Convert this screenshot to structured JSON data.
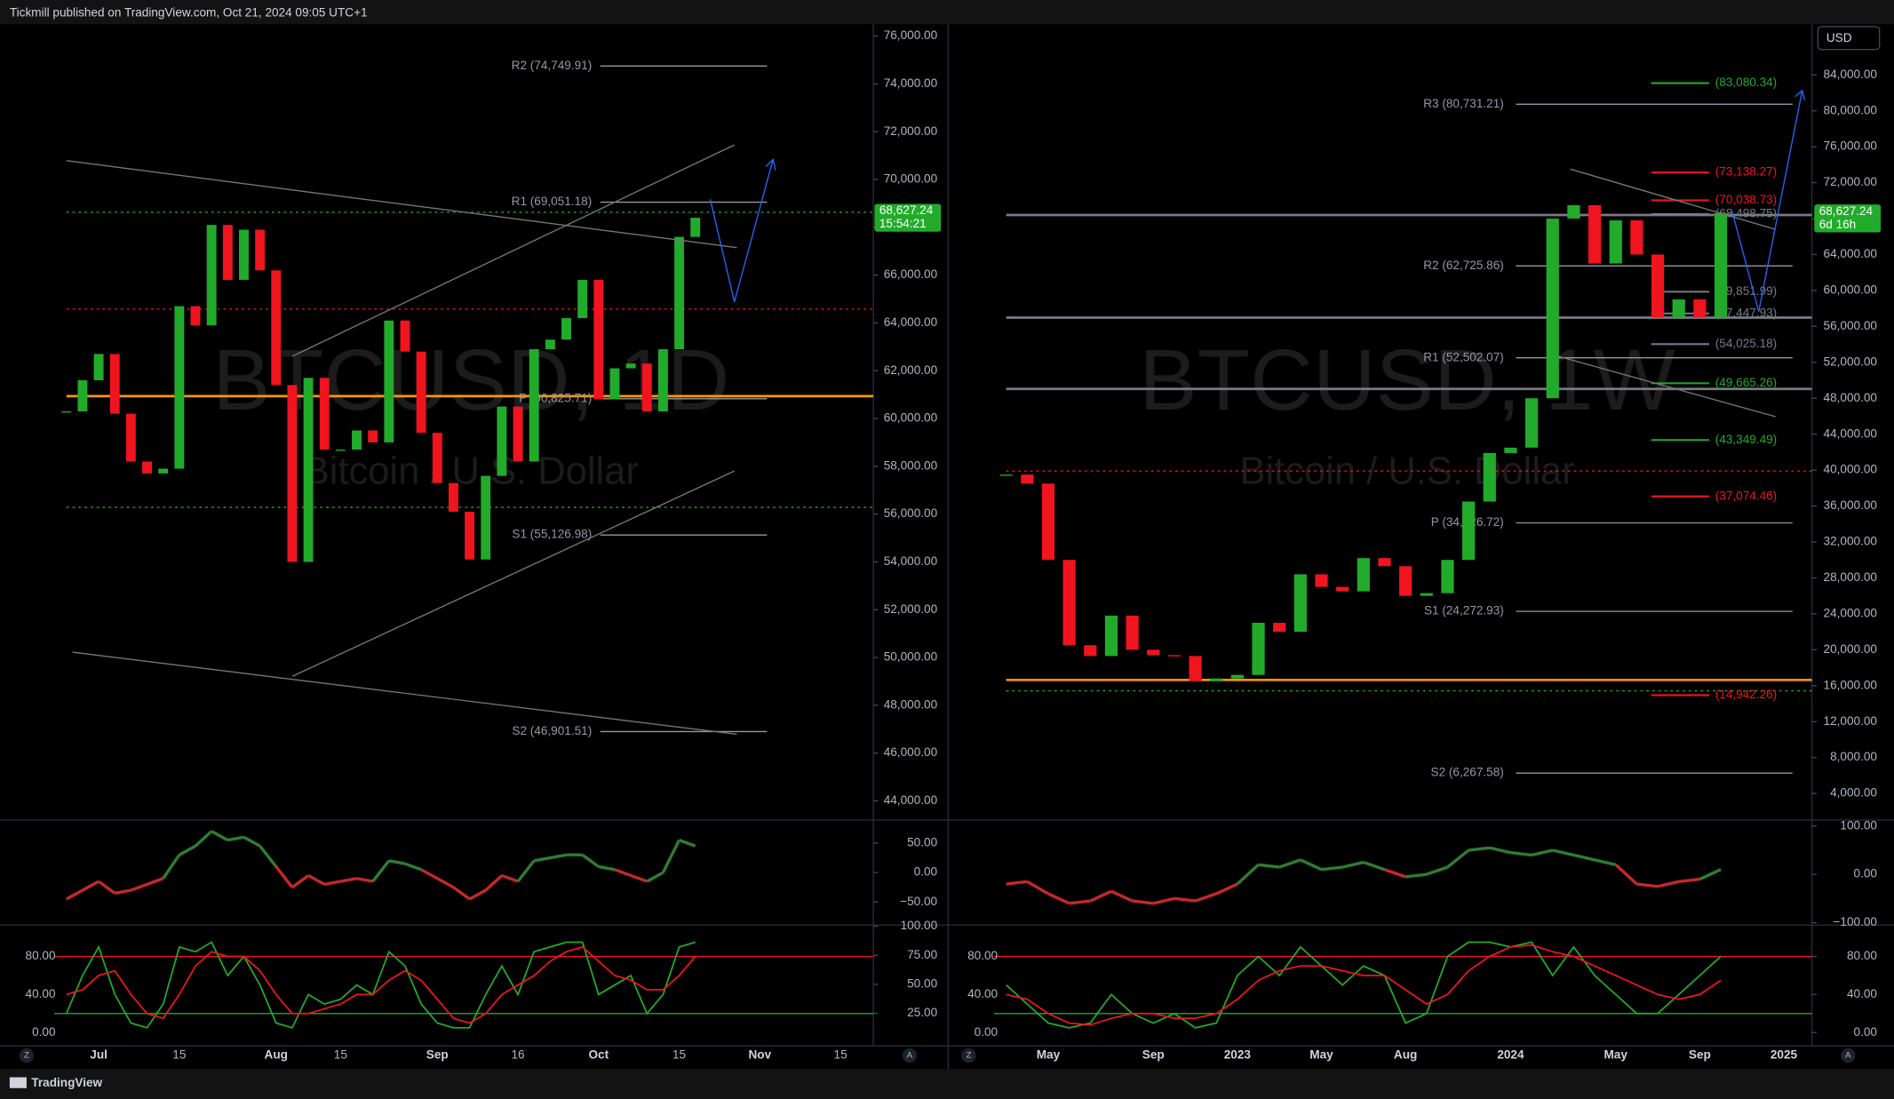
{
  "header": {
    "title": "Tickmill published on TradingView.com, Oct 21, 2024 09:05 UTC+1",
    "currency": "USD"
  },
  "footer": {
    "brand": "TradingView"
  },
  "scale_buttons": [
    "Z",
    "A"
  ],
  "chart_data": [
    {
      "type": "candlestick",
      "title": "BTCUSD, 1D",
      "subtitle": "Bitcoin / U.S. Dollar",
      "up_color": "#22ab2b",
      "down_color": "#f0141e",
      "categories": [
        null,
        null,
        "Jul",
        null,
        null,
        null,
        null,
        "15",
        null,
        null,
        null,
        null,
        null,
        "Aug",
        null,
        null,
        null,
        "15",
        null,
        null,
        null,
        null,
        null,
        "Sep",
        null,
        null,
        null,
        null,
        "16",
        null,
        null,
        null,
        null,
        "Oct",
        null,
        null,
        null,
        null,
        "15",
        null,
        null,
        null,
        null,
        "Nov",
        null,
        null,
        null,
        null,
        "15",
        null
      ],
      "values": [
        60300,
        61600,
        62700,
        60200,
        58200,
        57700,
        57900,
        64700,
        63900,
        68100,
        65800,
        67900,
        66200,
        61400,
        54000,
        61700,
        58700,
        58700,
        59500,
        59000,
        64100,
        62800,
        59400,
        57300,
        56100,
        54100,
        57600,
        60500,
        58200,
        62900,
        63300,
        64200,
        65800,
        60800,
        62100,
        62300,
        60300,
        62900,
        67600,
        68400,
        null,
        null,
        null,
        null,
        null,
        null,
        null,
        null,
        null,
        null
      ],
      "ylim": [
        43250,
        76500
      ],
      "yticks": [
        {
          "value": 44000,
          "label": "44,000.00"
        },
        {
          "value": 46000,
          "label": "46,000.00"
        },
        {
          "value": 48000,
          "label": "48,000.00"
        },
        {
          "value": 50000,
          "label": "50,000.00"
        },
        {
          "value": 52000,
          "label": "52,000.00"
        },
        {
          "value": 54000,
          "label": "54,000.00"
        },
        {
          "value": 56000,
          "label": "56,000.00"
        },
        {
          "value": 58000,
          "label": "58,000.00"
        },
        {
          "value": 60000,
          "label": "60,000.00"
        },
        {
          "value": 62000,
          "label": "62,000.00"
        },
        {
          "value": 64000,
          "label": "64,000.00"
        },
        {
          "value": 66000,
          "label": "66,000.00"
        },
        {
          "value": 68000,
          "label": "68,000.00"
        },
        {
          "value": 70000,
          "label": "70,000.00"
        },
        {
          "value": 72000,
          "label": "72,000.00"
        },
        {
          "value": 74000,
          "label": "74,000.00"
        },
        {
          "value": 76000,
          "label": "76,000.00"
        }
      ],
      "last_price": {
        "value": 68627.24,
        "label": "68,627.24",
        "timer": "15:54:21"
      },
      "hlines": [
        {
          "value": 64575,
          "color": "#f0141e",
          "dashed": true
        },
        {
          "value": 60935,
          "color": "#ff9800",
          "dashed": false
        },
        {
          "value": 56284,
          "color": "#22ab2b",
          "dashed": true
        },
        {
          "value": 68627.24,
          "color": "#22ab2b",
          "dashed": true
        }
      ],
      "pivots": [
        {
          "label": "R2 (74,749.91)",
          "value": 74749.91,
          "color": "#9598a1"
        },
        {
          "label": "R1 (69,051.18)",
          "value": 69051.18,
          "color": "#9598a1"
        },
        {
          "label": "P (60,825.71)",
          "value": 60825.71,
          "color": "#9598a1"
        },
        {
          "label": "S1 (55,126.98)",
          "value": 55126.98,
          "color": "#9598a1"
        },
        {
          "label": "S2 (46,901.51)",
          "value": 46901.51,
          "color": "#9598a1"
        }
      ],
      "marks": [],
      "momentum": {
        "type": "line",
        "pos_color": "#2e7d32",
        "neg_color": "#c62828",
        "ylim": [
          -87,
          87
        ],
        "yticks": [
          {
            "value": 50,
            "label": "50.00"
          },
          {
            "value": 0,
            "label": "0.00"
          },
          {
            "value": -50,
            "label": "−50.00"
          }
        ],
        "values": [
          -45,
          -30,
          -15,
          -35,
          -30,
          -20,
          -10,
          30,
          45,
          70,
          55,
          60,
          45,
          10,
          -25,
          -5,
          -20,
          -15,
          -10,
          -15,
          20,
          15,
          5,
          -10,
          -25,
          -45,
          -30,
          -5,
          -15,
          20,
          25,
          30,
          30,
          10,
          5,
          -5,
          -15,
          0,
          55,
          45,
          null,
          null,
          null,
          null,
          null,
          null,
          null,
          null,
          null,
          null
        ]
      },
      "stoch": {
        "type": "line",
        "ylim": [
          -12.7,
          111.7
        ],
        "yticks": [
          {
            "value": 80,
            "label": "80.00"
          },
          {
            "value": 40,
            "label": "40.00"
          },
          {
            "value": 0,
            "label": "0.00"
          }
        ],
        "y2lim": [
          -2,
          100
        ],
        "y2ticks": [
          {
            "value": 100,
            "label": "100.00"
          },
          {
            "value": 75,
            "label": "75.00"
          },
          {
            "value": 50,
            "label": "50.00"
          },
          {
            "value": 25,
            "label": "25.00"
          }
        ],
        "levels": [
          {
            "value": 80,
            "color": "#f0141e"
          },
          {
            "value": 20,
            "color": "#22ab2b"
          }
        ],
        "series": [
          {
            "color": "#22ab2b",
            "values": [
              20,
              60,
              90,
              40,
              10,
              5,
              30,
              90,
              85,
              95,
              60,
              80,
              50,
              10,
              5,
              40,
              30,
              35,
              50,
              40,
              85,
              70,
              30,
              10,
              5,
              5,
              40,
              70,
              40,
              85,
              90,
              95,
              95,
              40,
              50,
              60,
              20,
              40,
              90,
              95,
              null,
              null,
              null,
              null,
              null,
              null,
              null,
              null,
              null,
              null
            ]
          },
          {
            "color": "#f0141e",
            "values": [
              40,
              45,
              60,
              65,
              40,
              20,
              15,
              40,
              70,
              85,
              80,
              80,
              65,
              40,
              20,
              20,
              25,
              30,
              40,
              40,
              55,
              65,
              55,
              35,
              15,
              10,
              20,
              40,
              50,
              60,
              75,
              85,
              90,
              75,
              60,
              55,
              45,
              45,
              60,
              80,
              null,
              null,
              null,
              null,
              null,
              null,
              null,
              null,
              null,
              null
            ]
          }
        ]
      }
    },
    {
      "type": "candlestick",
      "title": "BTCUSD, 1W",
      "subtitle": "Bitcoin / U.S. Dollar",
      "up_color": "#22ab2b",
      "down_color": "#f0141e",
      "categories": [
        null,
        null,
        "May",
        null,
        null,
        null,
        null,
        "Sep",
        null,
        null,
        null,
        "2023",
        null,
        null,
        null,
        "May",
        null,
        null,
        null,
        "Aug",
        null,
        null,
        null,
        null,
        "2024",
        null,
        null,
        null,
        null,
        "May",
        null,
        null,
        null,
        "Sep",
        null,
        null,
        null,
        "2025",
        null
      ],
      "values": [
        39500,
        38500,
        30000,
        20500,
        19300,
        23800,
        20000,
        19400,
        19300,
        16500,
        16800,
        17200,
        23000,
        22000,
        28400,
        27000,
        26500,
        30200,
        29300,
        26000,
        26300,
        30000,
        36500,
        41900,
        42500,
        48000,
        68000,
        69500,
        63000,
        67800,
        64000,
        57000,
        59000,
        57000,
        68600,
        null,
        null,
        null,
        null
      ],
      "ylim": [
        1176,
        89647
      ],
      "yticks": [
        {
          "value": 4000,
          "label": "4,000.00"
        },
        {
          "value": 8000,
          "label": "8,000.00"
        },
        {
          "value": 12000,
          "label": "12,000.00"
        },
        {
          "value": 16000,
          "label": "16,000.00"
        },
        {
          "value": 20000,
          "label": "20,000.00"
        },
        {
          "value": 24000,
          "label": "24,000.00"
        },
        {
          "value": 28000,
          "label": "28,000.00"
        },
        {
          "value": 32000,
          "label": "32,000.00"
        },
        {
          "value": 36000,
          "label": "36,000.00"
        },
        {
          "value": 40000,
          "label": "40,000.00"
        },
        {
          "value": 44000,
          "label": "44,000.00"
        },
        {
          "value": 48000,
          "label": "48,000.00"
        },
        {
          "value": 52000,
          "label": "52,000.00"
        },
        {
          "value": 56000,
          "label": "56,000.00"
        },
        {
          "value": 60000,
          "label": "60,000.00"
        },
        {
          "value": 64000,
          "label": "64,000.00"
        },
        {
          "value": 68000,
          "label": "68,000.00"
        },
        {
          "value": 72000,
          "label": "72,000.00"
        },
        {
          "value": 76000,
          "label": "76,000.00"
        },
        {
          "value": 80000,
          "label": "80,000.00"
        },
        {
          "value": 84000,
          "label": "84,000.00"
        }
      ],
      "last_price": {
        "value": 68627.24,
        "label": "68,627.24",
        "timer": "6d 16h"
      },
      "hlines": [
        {
          "value": 39899,
          "color": "#f0141e",
          "dashed": true
        },
        {
          "value": 16639,
          "color": "#ff9800",
          "dashed": false
        },
        {
          "value": 15430,
          "color": "#22ab2b",
          "dashed": true
        },
        {
          "value": 68403,
          "color": "#787b86",
          "dashed": false
        },
        {
          "value": 56975,
          "color": "#787b86",
          "dashed": false
        },
        {
          "value": 49042,
          "color": "#787b86",
          "dashed": false
        }
      ],
      "pivots": [
        {
          "label": "R3 (80,731.21)",
          "value": 80731.21,
          "color": "#9598a1"
        },
        {
          "label": "R2 (62,725.86)",
          "value": 62725.86,
          "color": "#9598a1"
        },
        {
          "label": "R1 (52,502.07)",
          "value": 52502.07,
          "color": "#9598a1"
        },
        {
          "label": "P (34,126.72)",
          "value": 34126.72,
          "color": "#9598a1"
        },
        {
          "label": "S1 (24,272.93)",
          "value": 24272.93,
          "color": "#9598a1"
        },
        {
          "label": "S2 (6,267.58)",
          "value": 6267.58,
          "color": "#9598a1"
        }
      ],
      "marks": [
        {
          "label": "(83,080.34)",
          "value": 83080.34,
          "color": "#22ab2b"
        },
        {
          "label": "(73,138.27)",
          "value": 73138.27,
          "color": "#f0141e"
        },
        {
          "label": "(70,038.73)",
          "value": 70038.73,
          "color": "#f0141e"
        },
        {
          "label": "(68,498.75)",
          "value": 68498.75,
          "color": "#787b86"
        },
        {
          "label": "(59,851.99)",
          "value": 59851.99,
          "color": "#787b86"
        },
        {
          "label": "(57,447.93)",
          "value": 57447.93,
          "color": "#787b86"
        },
        {
          "label": "(54,025.18)",
          "value": 54025.18,
          "color": "#787b86"
        },
        {
          "label": "(49,665.26)",
          "value": 49665.26,
          "color": "#22ab2b"
        },
        {
          "label": "(43,349.49)",
          "value": 43349.49,
          "color": "#22ab2b"
        },
        {
          "label": "(37,074.46)",
          "value": 37074.46,
          "color": "#f0141e"
        },
        {
          "label": "(14,942.26)",
          "value": 14942.26,
          "color": "#f0141e"
        }
      ],
      "momentum": {
        "type": "line",
        "pos_color": "#2e7d32",
        "neg_color": "#c62828",
        "ylim": [
          -102.5,
          110
        ],
        "yticks": [
          {
            "value": 100,
            "label": "100.00"
          },
          {
            "value": 0,
            "label": "0.00"
          },
          {
            "value": -100,
            "label": "−100.00"
          }
        ],
        "values": [
          -20,
          -15,
          -40,
          -60,
          -55,
          -35,
          -55,
          -60,
          -50,
          -55,
          -40,
          -20,
          20,
          15,
          30,
          10,
          15,
          25,
          10,
          -5,
          0,
          15,
          50,
          55,
          45,
          40,
          50,
          40,
          30,
          20,
          -20,
          -25,
          -15,
          -10,
          10,
          null,
          null,
          null,
          null
        ]
      },
      "stoch": {
        "type": "line",
        "ylim": [
          -12.7,
          111.7
        ],
        "yticks": [
          {
            "value": 80,
            "label": "80.00"
          },
          {
            "value": 40,
            "label": "40.00"
          },
          {
            "value": 0,
            "label": "0.00"
          }
        ],
        "y2lim": [
          -12.7,
          111.7
        ],
        "y2ticks": [
          {
            "value": 80,
            "label": "80.00"
          },
          {
            "value": 40,
            "label": "40.00"
          },
          {
            "value": 0,
            "label": "0.00"
          }
        ],
        "levels": [
          {
            "value": 80,
            "color": "#f0141e"
          },
          {
            "value": 20,
            "color": "#22ab2b"
          }
        ],
        "series": [
          {
            "color": "#22ab2b",
            "values": [
              50,
              30,
              10,
              5,
              10,
              40,
              20,
              10,
              20,
              5,
              10,
              60,
              80,
              60,
              90,
              70,
              50,
              70,
              60,
              10,
              20,
              80,
              95,
              95,
              90,
              95,
              60,
              90,
              60,
              40,
              20,
              20,
              40,
              60,
              80,
              null,
              null,
              null,
              null
            ]
          },
          {
            "color": "#f0141e",
            "values": [
              40,
              35,
              20,
              10,
              8,
              15,
              20,
              20,
              15,
              15,
              20,
              35,
              55,
              65,
              70,
              70,
              65,
              60,
              60,
              45,
              30,
              40,
              65,
              80,
              90,
              92,
              85,
              80,
              70,
              60,
              50,
              40,
              35,
              40,
              55,
              null,
              null,
              null,
              null
            ]
          }
        ]
      }
    }
  ]
}
